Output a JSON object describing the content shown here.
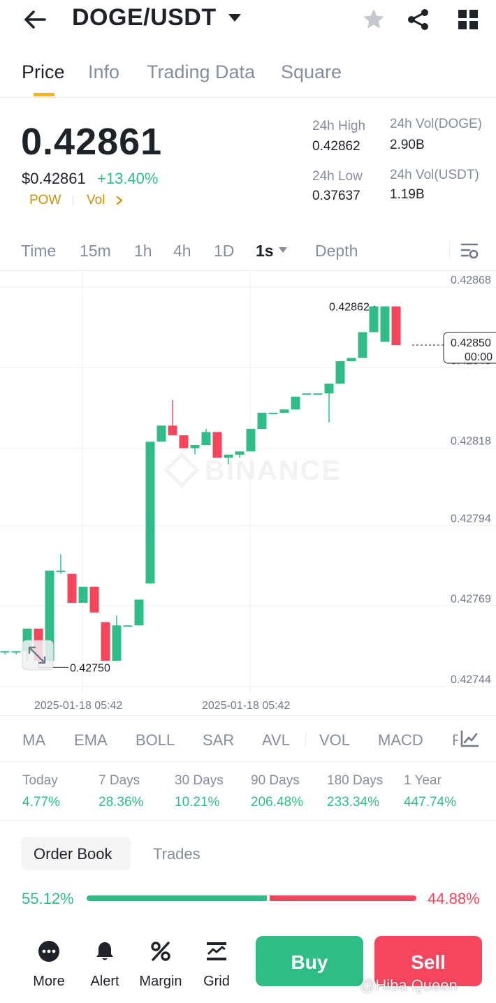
{
  "header": {
    "pair": "DOGE/USDT",
    "back_icon": "arrow-left-icon",
    "caret_icon": "caret-down-icon",
    "star_icon": "star-icon",
    "share_icon": "share-icon",
    "grid_icon": "grid-icon"
  },
  "tabs": [
    "Price",
    "Info",
    "Trading Data",
    "Square"
  ],
  "price": {
    "last": "0.42861",
    "usd": "$0.42861",
    "change": "+13.40%",
    "tags": [
      "POW",
      "Vol"
    ]
  },
  "stats": {
    "high_label": "24h High",
    "high_value": "0.42862",
    "low_label": "24h Low",
    "low_value": "0.37637",
    "vol_doge_label": "24h Vol(DOGE)",
    "vol_doge_value": "2.90B",
    "vol_usdt_label": "24h Vol(USDT)",
    "vol_usdt_value": "1.19B"
  },
  "intervals": [
    "Time",
    "15m",
    "1h",
    "4h",
    "1D",
    "1s",
    "Depth"
  ],
  "chart_data": {
    "type": "candlestick",
    "y_ticks": [
      "0.42868",
      "0.42843",
      "0.42818",
      "0.42794",
      "0.42769",
      "0.42744"
    ],
    "x_ticks": [
      "2025-01-18 05:42",
      "2025-01-18 05:42"
    ],
    "high_marker": "0.42862",
    "low_marker": "0.42750",
    "current_price": "0.42850",
    "countdown": "00:00",
    "watermark": "BINANCE",
    "ylim": [
      0.42744,
      0.42868
    ],
    "up_color": "#2ebd85",
    "down_color": "#f6465d",
    "candles": [
      {
        "o": 0.42755,
        "h": 0.42755,
        "l": 0.42754,
        "c": 0.42755
      },
      {
        "o": 0.42755,
        "h": 0.42755,
        "l": 0.42754,
        "c": 0.42755
      },
      {
        "o": 0.42755,
        "h": 0.42762,
        "l": 0.42752,
        "c": 0.42762
      },
      {
        "o": 0.42762,
        "h": 0.42762,
        "l": 0.4275,
        "c": 0.42752
      },
      {
        "o": 0.42752,
        "h": 0.4278,
        "l": 0.42751,
        "c": 0.4278
      },
      {
        "o": 0.4278,
        "h": 0.42785,
        "l": 0.42779,
        "c": 0.4278
      },
      {
        "o": 0.42779,
        "h": 0.42779,
        "l": 0.4277,
        "c": 0.4277
      },
      {
        "o": 0.4277,
        "h": 0.42775,
        "l": 0.4277,
        "c": 0.42775
      },
      {
        "o": 0.42775,
        "h": 0.42775,
        "l": 0.42767,
        "c": 0.42767
      },
      {
        "o": 0.42764,
        "h": 0.42764,
        "l": 0.42752,
        "c": 0.42752
      },
      {
        "o": 0.42752,
        "h": 0.42766,
        "l": 0.42752,
        "c": 0.42763
      },
      {
        "o": 0.42763,
        "h": 0.42763,
        "l": 0.42763,
        "c": 0.42763
      },
      {
        "o": 0.42763,
        "h": 0.42771,
        "l": 0.42763,
        "c": 0.42771
      },
      {
        "o": 0.42776,
        "h": 0.4282,
        "l": 0.42776,
        "c": 0.4282
      },
      {
        "o": 0.4282,
        "h": 0.42825,
        "l": 0.4282,
        "c": 0.42825
      },
      {
        "o": 0.42825,
        "h": 0.42833,
        "l": 0.42822,
        "c": 0.42822
      },
      {
        "o": 0.42822,
        "h": 0.42822,
        "l": 0.42818,
        "c": 0.42818
      },
      {
        "o": 0.42818,
        "h": 0.42819,
        "l": 0.42816,
        "c": 0.42819
      },
      {
        "o": 0.42819,
        "h": 0.42824,
        "l": 0.42819,
        "c": 0.42823
      },
      {
        "o": 0.42823,
        "h": 0.42823,
        "l": 0.42815,
        "c": 0.42815
      },
      {
        "o": 0.42815,
        "h": 0.42816,
        "l": 0.42813,
        "c": 0.42816
      },
      {
        "o": 0.42816,
        "h": 0.42817,
        "l": 0.42815,
        "c": 0.42817
      },
      {
        "o": 0.42817,
        "h": 0.42824,
        "l": 0.42817,
        "c": 0.42824
      },
      {
        "o": 0.42824,
        "h": 0.42829,
        "l": 0.42824,
        "c": 0.42829
      },
      {
        "o": 0.42829,
        "h": 0.42829,
        "l": 0.42829,
        "c": 0.42829
      },
      {
        "o": 0.42829,
        "h": 0.4283,
        "l": 0.42829,
        "c": 0.4283
      },
      {
        "o": 0.4283,
        "h": 0.42834,
        "l": 0.4283,
        "c": 0.42834
      },
      {
        "o": 0.42835,
        "h": 0.42835,
        "l": 0.42835,
        "c": 0.42835
      },
      {
        "o": 0.42835,
        "h": 0.42835,
        "l": 0.42835,
        "c": 0.42835
      },
      {
        "o": 0.42835,
        "h": 0.42838,
        "l": 0.42826,
        "c": 0.42838
      },
      {
        "o": 0.42838,
        "h": 0.42845,
        "l": 0.42838,
        "c": 0.42845
      },
      {
        "o": 0.42845,
        "h": 0.42846,
        "l": 0.42845,
        "c": 0.42846
      },
      {
        "o": 0.42846,
        "h": 0.42854,
        "l": 0.42846,
        "c": 0.42854
      },
      {
        "o": 0.42854,
        "h": 0.42862,
        "l": 0.42854,
        "c": 0.42862
      },
      {
        "o": 0.42851,
        "h": 0.42862,
        "l": 0.42851,
        "c": 0.42862
      },
      {
        "o": 0.42862,
        "h": 0.42862,
        "l": 0.4285,
        "c": 0.4285
      }
    ]
  },
  "indicators": [
    "MA",
    "EMA",
    "BOLL",
    "SAR",
    "AVL",
    "VOL",
    "MACD",
    "R"
  ],
  "performance": [
    {
      "label": "Today",
      "value": "4.77%"
    },
    {
      "label": "7 Days",
      "value": "28.36%"
    },
    {
      "label": "30 Days",
      "value": "10.21%"
    },
    {
      "label": "90 Days",
      "value": "206.48%"
    },
    {
      "label": "180 Days",
      "value": "233.34%"
    },
    {
      "label": "1 Year",
      "value": "447.74%"
    }
  ],
  "orderbook": {
    "tab_active": "Order Book",
    "tab_other": "Trades",
    "buy_ratio": "55.12%",
    "sell_ratio": "44.88%",
    "buy_fraction": 0.5512
  },
  "bottom": {
    "items": [
      "More",
      "Alert",
      "Margin",
      "Grid"
    ],
    "buy": "Buy",
    "sell": "Sell",
    "watermark": "@Hiba Queen"
  }
}
